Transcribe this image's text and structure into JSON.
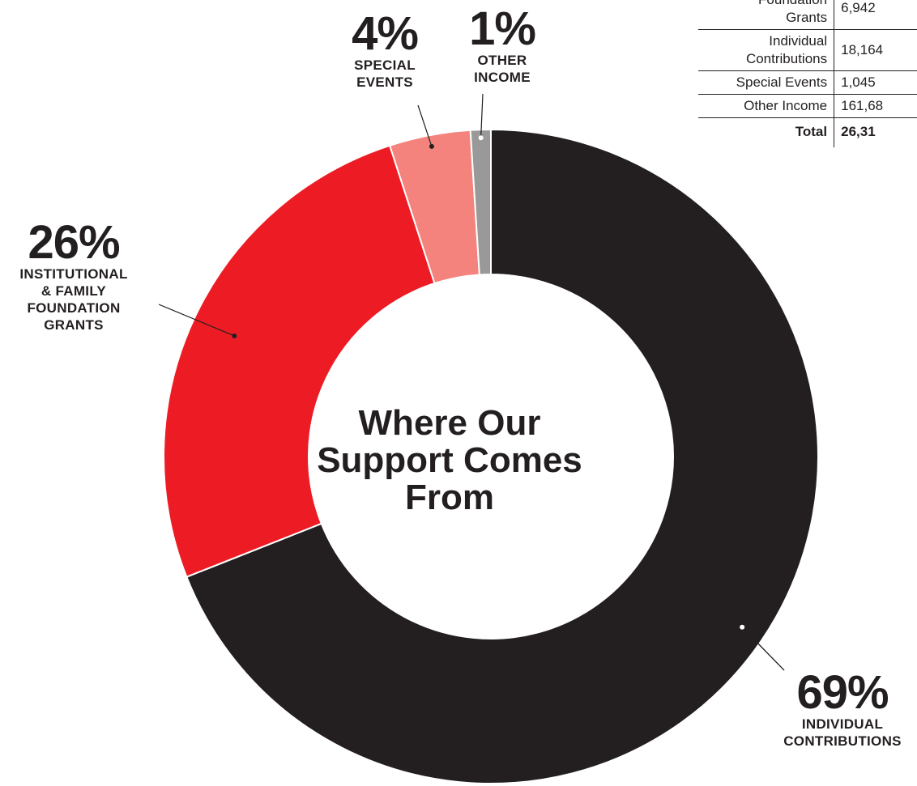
{
  "chart_data": {
    "type": "pie",
    "title": "Where Our Support Comes From",
    "slices": [
      {
        "label_lines": [
          "INDIVIDUAL",
          "CONTRIBUTIONS"
        ],
        "percent_label": "69%",
        "value": 69,
        "color": "#231f20"
      },
      {
        "label_lines": [
          "INSTITUTIONAL",
          "& FAMILY",
          "FOUNDATION",
          "GRANTS"
        ],
        "percent_label": "26%",
        "value": 26,
        "color": "#ed1c24"
      },
      {
        "label_lines": [
          "SPECIAL",
          "EVENTS"
        ],
        "percent_label": "4%",
        "value": 4,
        "color": "#f4837d"
      },
      {
        "label_lines": [
          "OTHER",
          "INCOME"
        ],
        "percent_label": "1%",
        "value": 1,
        "color": "#999999"
      }
    ]
  },
  "table": {
    "rows": [
      {
        "name_lines": [
          "Foundation",
          "Grants"
        ],
        "amount": "6,942"
      },
      {
        "name_lines": [
          "Individual",
          "Contributions"
        ],
        "amount": "18,164"
      },
      {
        "name_lines": [
          "Special Events"
        ],
        "amount": "1,045"
      },
      {
        "name_lines": [
          "Other Income"
        ],
        "amount": "161,68"
      }
    ],
    "total": {
      "name": "Total",
      "amount": "26,31"
    }
  }
}
